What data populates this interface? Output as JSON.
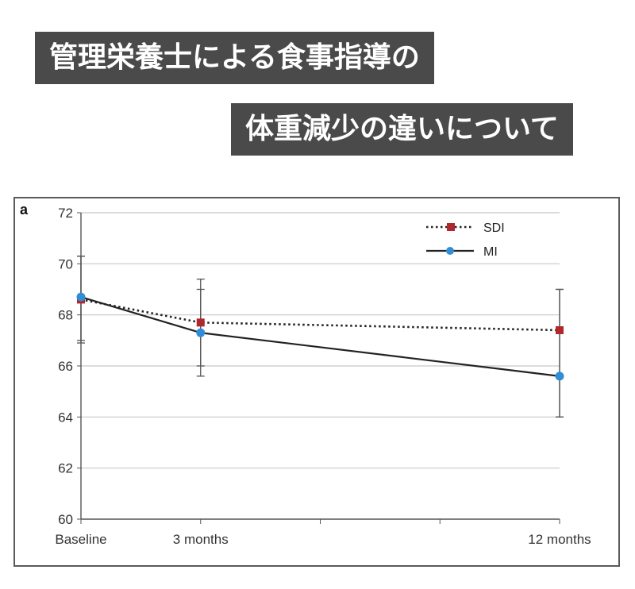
{
  "banners": {
    "line1": "管理栄養士による食事指導の",
    "line2": "体重減少の違いについて"
  },
  "chart_data": {
    "type": "line",
    "panel_label": "a",
    "categories": [
      "Baseline",
      "3 months",
      "12 months"
    ],
    "x": [
      0,
      3,
      12
    ],
    "ylim": [
      60,
      72
    ],
    "yticks": [
      60,
      62,
      64,
      66,
      68,
      70,
      72
    ],
    "grid": true,
    "legend_position": "top-right",
    "series": [
      {
        "name": "SDI",
        "style": "dotted",
        "marker": "square",
        "color": "#b0282e",
        "values": [
          68.6,
          67.7,
          67.4
        ],
        "error_low": [
          66.9,
          65.6,
          64.0
        ],
        "error_high": [
          70.3,
          69.4,
          69.0
        ]
      },
      {
        "name": "MI",
        "style": "solid",
        "marker": "circle",
        "color": "#2f8ed6",
        "values": [
          68.7,
          67.3,
          65.6
        ],
        "error_low": [
          67.0,
          66.0,
          64.0
        ],
        "error_high": [
          70.3,
          69.0,
          69.0
        ]
      }
    ]
  }
}
